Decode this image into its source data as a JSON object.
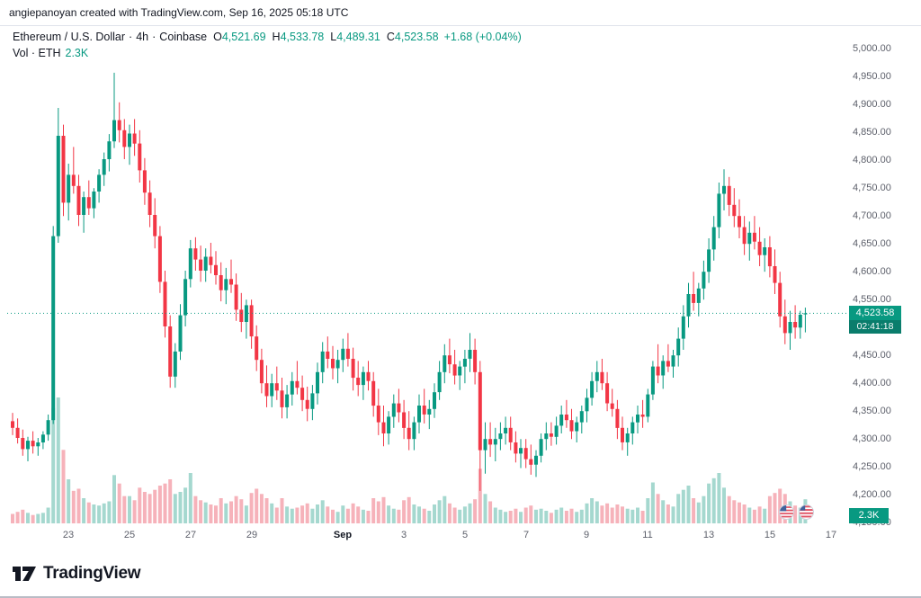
{
  "attribution": "angiepanoyan created with TradingView.com, Sep 16, 2025 05:18 UTC",
  "legend": {
    "symbol_title": "Ethereum / U.S. Dollar",
    "sep": "·",
    "interval": "4h",
    "exchange": "Coinbase",
    "ohlc": {
      "o_label": "O",
      "o": "4,521.69",
      "h_label": "H",
      "h": "4,533.78",
      "l_label": "L",
      "l": "4,489.31",
      "c_label": "C",
      "c": "4,523.58",
      "change": "+1.68 (+0.04%)"
    },
    "volume_label": "Vol · ETH",
    "volume_value": "2.3K"
  },
  "price_scale": {
    "last_price": "4,523.58",
    "last_price_value": 4523.58,
    "countdown": "02:41:18"
  },
  "volume_badge": "2.3K",
  "event_markers": [
    "us-flag-icon",
    "us-flag-icon"
  ],
  "footer": {
    "brand": "TradingView"
  },
  "colors": {
    "up": "#089981",
    "down": "#f23645",
    "vol_up": "#a5d8cf",
    "vol_down": "#f6b2ba",
    "axis_text": "#5d606b",
    "axis_text_bold": "#131722",
    "accent": "#089981"
  },
  "chart_data": {
    "type": "candlestick+volume",
    "title": "Ethereum / U.S. Dollar · 4h · Coinbase",
    "symbol": "ETH/USD",
    "exchange": "Coinbase",
    "interval": "4h",
    "ylim": [
      4150,
      5000
    ],
    "y_ticks": [
      "5,000.00",
      "4,950.00",
      "4,900.00",
      "4,850.00",
      "4,800.00",
      "4,750.00",
      "4,700.00",
      "4,650.00",
      "4,600.00",
      "4,550.00",
      "4,500.00",
      "4,450.00",
      "4,400.00",
      "4,350.00",
      "4,300.00",
      "4,250.00",
      "4,200.00",
      "4,150.00"
    ],
    "x_ticks": [
      {
        "label": "23",
        "index": 11
      },
      {
        "label": "25",
        "index": 23
      },
      {
        "label": "27",
        "index": 35
      },
      {
        "label": "29",
        "index": 47
      },
      {
        "label": "Sep",
        "index": 65,
        "bold": true
      },
      {
        "label": "3",
        "index": 77
      },
      {
        "label": "5",
        "index": 89
      },
      {
        "label": "7",
        "index": 101
      },
      {
        "label": "9",
        "index": 113
      },
      {
        "label": "11",
        "index": 125
      },
      {
        "label": "13",
        "index": 137
      },
      {
        "label": "15",
        "index": 149
      },
      {
        "label": "17",
        "index": 161
      }
    ],
    "candles_format": [
      "open",
      "high",
      "low",
      "close",
      "volume"
    ],
    "candles": [
      [
        4330,
        4345,
        4305,
        4318,
        900
      ],
      [
        4318,
        4335,
        4290,
        4300,
        1100
      ],
      [
        4300,
        4315,
        4268,
        4280,
        1300
      ],
      [
        4280,
        4302,
        4258,
        4295,
        1000
      ],
      [
        4295,
        4312,
        4272,
        4285,
        800
      ],
      [
        4285,
        4300,
        4268,
        4292,
        900
      ],
      [
        4292,
        4312,
        4280,
        4306,
        1000
      ],
      [
        4306,
        4342,
        4295,
        4332,
        1500
      ],
      [
        4332,
        4680,
        4325,
        4662,
        11000
      ],
      [
        4662,
        4892,
        4650,
        4842,
        12000
      ],
      [
        4842,
        4862,
        4698,
        4722,
        7000
      ],
      [
        4722,
        4792,
        4690,
        4772,
        4200
      ],
      [
        4772,
        4822,
        4738,
        4752,
        3100
      ],
      [
        4752,
        4772,
        4680,
        4700,
        3300
      ],
      [
        4700,
        4742,
        4668,
        4732,
        2400
      ],
      [
        4732,
        4762,
        4700,
        4712,
        2000
      ],
      [
        4712,
        4748,
        4694,
        4742,
        1800
      ],
      [
        4742,
        4782,
        4722,
        4772,
        1700
      ],
      [
        4772,
        4812,
        4752,
        4800,
        1900
      ],
      [
        4800,
        4845,
        4778,
        4832,
        2100
      ],
      [
        4832,
        4955,
        4820,
        4870,
        4600
      ],
      [
        4870,
        4902,
        4830,
        4852,
        3800
      ],
      [
        4852,
        4872,
        4800,
        4822,
        2600
      ],
      [
        4822,
        4862,
        4790,
        4846,
        2600
      ],
      [
        4846,
        4872,
        4806,
        4828,
        2200
      ],
      [
        4828,
        4852,
        4758,
        4780,
        3400
      ],
      [
        4780,
        4802,
        4718,
        4740,
        3000
      ],
      [
        4740,
        4762,
        4678,
        4700,
        2800
      ],
      [
        4700,
        4730,
        4640,
        4662,
        3200
      ],
      [
        4662,
        4680,
        4560,
        4580,
        3600
      ],
      [
        4580,
        4600,
        4480,
        4500,
        3800
      ],
      [
        4500,
        4520,
        4390,
        4410,
        4200
      ],
      [
        4410,
        4470,
        4390,
        4455,
        2800
      ],
      [
        4455,
        4540,
        4440,
        4520,
        3000
      ],
      [
        4520,
        4600,
        4500,
        4585,
        3400
      ],
      [
        4585,
        4655,
        4570,
        4640,
        4800
      ],
      [
        4640,
        4660,
        4600,
        4620,
        2600
      ],
      [
        4620,
        4645,
        4580,
        4600,
        2200
      ],
      [
        4600,
        4640,
        4580,
        4625,
        2000
      ],
      [
        4625,
        4650,
        4595,
        4610,
        1800
      ],
      [
        4610,
        4635,
        4575,
        4592,
        1700
      ],
      [
        4592,
        4615,
        4545,
        4565,
        2400
      ],
      [
        4565,
        4605,
        4540,
        4585,
        1900
      ],
      [
        4585,
        4620,
        4560,
        4575,
        2100
      ],
      [
        4575,
        4595,
        4510,
        4530,
        2600
      ],
      [
        4530,
        4560,
        4490,
        4508,
        2300
      ],
      [
        4508,
        4548,
        4478,
        4538,
        1700
      ],
      [
        4538,
        4548,
        4460,
        4482,
        2900
      ],
      [
        4482,
        4502,
        4420,
        4440,
        3300
      ],
      [
        4440,
        4460,
        4380,
        4398,
        2800
      ],
      [
        4398,
        4430,
        4355,
        4375,
        2400
      ],
      [
        4375,
        4415,
        4355,
        4398,
        1900
      ],
      [
        4398,
        4428,
        4368,
        4385,
        1500
      ],
      [
        4385,
        4408,
        4335,
        4355,
        2400
      ],
      [
        4355,
        4395,
        4335,
        4378,
        1600
      ],
      [
        4378,
        4418,
        4358,
        4402,
        1400
      ],
      [
        4402,
        4438,
        4378,
        4390,
        1500
      ],
      [
        4390,
        4412,
        4348,
        4368,
        1700
      ],
      [
        4368,
        4392,
        4330,
        4352,
        1900
      ],
      [
        4352,
        4395,
        4332,
        4380,
        1400
      ],
      [
        4380,
        4435,
        4360,
        4418,
        1800
      ],
      [
        4418,
        4472,
        4398,
        4455,
        2200
      ],
      [
        4455,
        4482,
        4425,
        4442,
        1600
      ],
      [
        4442,
        4465,
        4405,
        4425,
        1300
      ],
      [
        4425,
        4458,
        4398,
        4440,
        1100
      ],
      [
        4440,
        4478,
        4418,
        4460,
        1700
      ],
      [
        4460,
        4488,
        4428,
        4442,
        1400
      ],
      [
        4442,
        4462,
        4385,
        4408,
        1900
      ],
      [
        4408,
        4438,
        4375,
        4395,
        1600
      ],
      [
        4395,
        4428,
        4368,
        4418,
        1300
      ],
      [
        4418,
        4438,
        4385,
        4402,
        1200
      ],
      [
        4402,
        4418,
        4338,
        4358,
        2400
      ],
      [
        4358,
        4388,
        4305,
        4328,
        2100
      ],
      [
        4328,
        4358,
        4285,
        4308,
        2500
      ],
      [
        4308,
        4348,
        4288,
        4338,
        1700
      ],
      [
        4338,
        4378,
        4318,
        4362,
        1400
      ],
      [
        4362,
        4388,
        4328,
        4346,
        1300
      ],
      [
        4346,
        4368,
        4298,
        4318,
        2200
      ],
      [
        4318,
        4348,
        4278,
        4298,
        2500
      ],
      [
        4298,
        4338,
        4278,
        4328,
        1800
      ],
      [
        4328,
        4378,
        4308,
        4358,
        1600
      ],
      [
        4358,
        4388,
        4326,
        4342,
        1400
      ],
      [
        4342,
        4368,
        4316,
        4352,
        1200
      ],
      [
        4352,
        4398,
        4336,
        4382,
        1800
      ],
      [
        4382,
        4438,
        4368,
        4418,
        2200
      ],
      [
        4418,
        4468,
        4398,
        4448,
        2600
      ],
      [
        4448,
        4478,
        4416,
        4432,
        1900
      ],
      [
        4432,
        4458,
        4396,
        4412,
        1500
      ],
      [
        4412,
        4438,
        4386,
        4428,
        1300
      ],
      [
        4428,
        4458,
        4398,
        4442,
        1600
      ],
      [
        4442,
        4488,
        4418,
        4458,
        1900
      ],
      [
        4458,
        4478,
        4396,
        4418,
        2300
      ],
      [
        4418,
        4438,
        4205,
        4278,
        5200
      ],
      [
        4278,
        4328,
        4236,
        4298,
        2800
      ],
      [
        4298,
        4328,
        4266,
        4288,
        2100
      ],
      [
        4288,
        4318,
        4258,
        4298,
        1500
      ],
      [
        4298,
        4328,
        4278,
        4308,
        1300
      ],
      [
        4308,
        4338,
        4288,
        4318,
        1100
      ],
      [
        4318,
        4338,
        4278,
        4292,
        1200
      ],
      [
        4292,
        4312,
        4256,
        4272,
        1400
      ],
      [
        4272,
        4298,
        4246,
        4282,
        1100
      ],
      [
        4282,
        4298,
        4246,
        4262,
        1500
      ],
      [
        4262,
        4288,
        4234,
        4252,
        1700
      ],
      [
        4252,
        4278,
        4230,
        4268,
        1300
      ],
      [
        4268,
        4308,
        4256,
        4298,
        1400
      ],
      [
        4298,
        4328,
        4278,
        4308,
        1200
      ],
      [
        4308,
        4328,
        4286,
        4302,
        1000
      ],
      [
        4302,
        4338,
        4288,
        4322,
        1300
      ],
      [
        4322,
        4358,
        4308,
        4342,
        1500
      ],
      [
        4342,
        4368,
        4318,
        4332,
        1200
      ],
      [
        4332,
        4352,
        4298,
        4312,
        1400
      ],
      [
        4312,
        4338,
        4292,
        4328,
        1100
      ],
      [
        4328,
        4358,
        4308,
        4348,
        1300
      ],
      [
        4348,
        4388,
        4328,
        4372,
        1900
      ],
      [
        4372,
        4418,
        4358,
        4402,
        2400
      ],
      [
        4402,
        4438,
        4382,
        4418,
        2100
      ],
      [
        4418,
        4442,
        4386,
        4398,
        1700
      ],
      [
        4398,
        4418,
        4348,
        4362,
        1900
      ],
      [
        4362,
        4388,
        4338,
        4352,
        1500
      ],
      [
        4352,
        4368,
        4298,
        4318,
        1800
      ],
      [
        4318,
        4338,
        4278,
        4292,
        1600
      ],
      [
        4292,
        4318,
        4268,
        4308,
        1400
      ],
      [
        4308,
        4338,
        4288,
        4328,
        1300
      ],
      [
        4328,
        4358,
        4308,
        4342,
        1500
      ],
      [
        4342,
        4368,
        4318,
        4338,
        1200
      ],
      [
        4338,
        4388,
        4328,
        4378,
        2400
      ],
      [
        4378,
        4438,
        4368,
        4428,
        3900
      ],
      [
        4428,
        4468,
        4398,
        4412,
        2800
      ],
      [
        4412,
        4448,
        4388,
        4438,
        2200
      ],
      [
        4438,
        4468,
        4418,
        4428,
        1800
      ],
      [
        4428,
        4458,
        4408,
        4448,
        1600
      ],
      [
        4448,
        4498,
        4428,
        4478,
        2800
      ],
      [
        4478,
        4538,
        4458,
        4518,
        3200
      ],
      [
        4518,
        4578,
        4498,
        4558,
        3600
      ],
      [
        4558,
        4598,
        4528,
        4542,
        2400
      ],
      [
        4542,
        4578,
        4518,
        4568,
        2000
      ],
      [
        4568,
        4618,
        4548,
        4598,
        2600
      ],
      [
        4598,
        4658,
        4578,
        4638,
        3800
      ],
      [
        4638,
        4698,
        4618,
        4678,
        4300
      ],
      [
        4678,
        4758,
        4658,
        4738,
        4800
      ],
      [
        4738,
        4782,
        4708,
        4752,
        3400
      ],
      [
        4752,
        4768,
        4698,
        4718,
        2600
      ],
      [
        4718,
        4748,
        4678,
        4698,
        2200
      ],
      [
        4698,
        4728,
        4658,
        4678,
        2000
      ],
      [
        4678,
        4698,
        4628,
        4648,
        1800
      ],
      [
        4648,
        4688,
        4618,
        4668,
        1500
      ],
      [
        4668,
        4698,
        4638,
        4652,
        1300
      ],
      [
        4652,
        4678,
        4608,
        4628,
        1600
      ],
      [
        4628,
        4658,
        4598,
        4642,
        1400
      ],
      [
        4642,
        4662,
        4588,
        4608,
        2600
      ],
      [
        4608,
        4638,
        4558,
        4578,
        2900
      ],
      [
        4578,
        4598,
        4498,
        4518,
        3300
      ],
      [
        4518,
        4548,
        4468,
        4488,
        2800
      ],
      [
        4488,
        4528,
        4458,
        4508,
        2100
      ],
      [
        4508,
        4538,
        4478,
        4498,
        1700
      ],
      [
        4498,
        4528,
        4478,
        4521,
        1500
      ],
      [
        4521.69,
        4533.78,
        4489.31,
        4523.58,
        2300
      ]
    ]
  }
}
